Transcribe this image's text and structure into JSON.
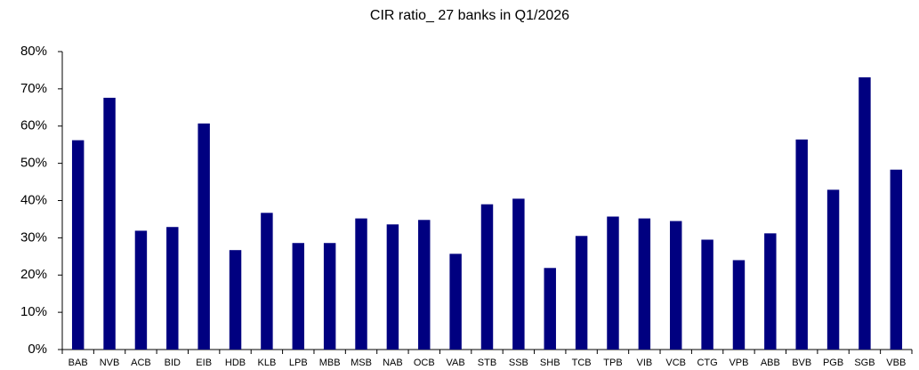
{
  "chart_data": {
    "type": "bar",
    "title": "CIR ratio_ 27 banks in Q1/2026",
    "categories": [
      "BAB",
      "NVB",
      "ACB",
      "BID",
      "EIB",
      "HDB",
      "KLB",
      "LPB",
      "MBB",
      "MSB",
      "NAB",
      "OCB",
      "VAB",
      "STB",
      "SSB",
      "SHB",
      "TCB",
      "TPB",
      "VIB",
      "VCB",
      "CTG",
      "VPB",
      "ABB",
      "BVB",
      "PGB",
      "SGB",
      "VBB"
    ],
    "values": [
      56.2,
      67.6,
      31.9,
      32.9,
      60.7,
      26.7,
      36.7,
      28.6,
      28.6,
      35.2,
      33.6,
      34.8,
      25.7,
      39.0,
      40.5,
      21.9,
      30.5,
      35.7,
      35.2,
      34.5,
      29.5,
      24.0,
      31.2,
      56.4,
      42.9,
      73.1,
      48.3
    ],
    "color": "#000080",
    "ylim": [
      0,
      80
    ],
    "yticks": [
      {
        "value": 0,
        "label": "0%"
      },
      {
        "value": 10,
        "label": "10%"
      },
      {
        "value": 20,
        "label": "20%"
      },
      {
        "value": 30,
        "label": "30%"
      },
      {
        "value": 40,
        "label": "40%"
      },
      {
        "value": 50,
        "label": "50%"
      },
      {
        "value": 60,
        "label": "60%"
      },
      {
        "value": 70,
        "label": "70%"
      },
      {
        "value": 80,
        "label": "80%"
      }
    ],
    "grid": false
  }
}
